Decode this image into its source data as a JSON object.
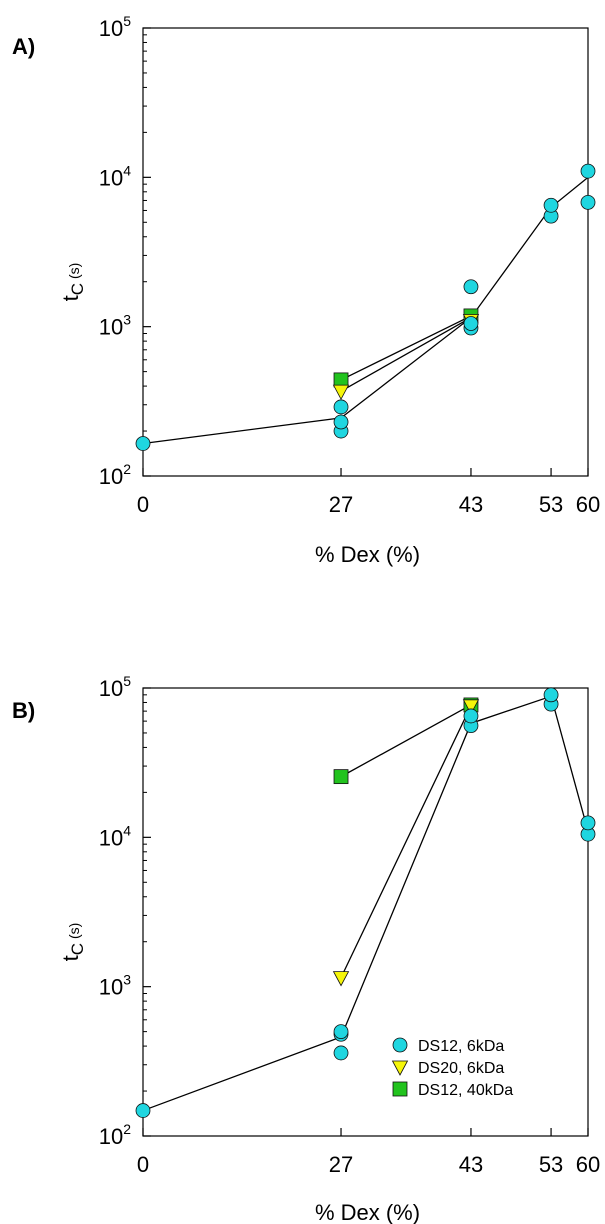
{
  "chart_data": [
    {
      "type": "scatter",
      "panel_label": "A)",
      "xlabel": "% Dex (%)",
      "ylabel": {
        "main": "t",
        "sub": "C",
        "unit": "(s)"
      },
      "x_scale": "categorical-nonuniform",
      "x_ticks": [
        "0",
        "27",
        "43",
        "53",
        "60"
      ],
      "y_scale": "log",
      "ylim": [
        100,
        100000
      ],
      "y_ticks": [
        {
          "base": "10",
          "exp": "2"
        },
        {
          "base": "10",
          "exp": "3"
        },
        {
          "base": "10",
          "exp": "4"
        },
        {
          "base": "10",
          "exp": "5"
        }
      ],
      "grid": false,
      "legend": null,
      "series": [
        {
          "marker": "circle",
          "color": "#1fd6e0",
          "points": [
            [
              0,
              165
            ],
            [
              27,
              200
            ],
            [
              27,
              230
            ],
            [
              27,
              290
            ],
            [
              43,
              980
            ],
            [
              43,
              1050
            ],
            [
              43,
              1850
            ],
            [
              53,
              5500
            ],
            [
              53,
              6500
            ],
            [
              60,
              6800
            ],
            [
              60,
              11000
            ]
          ],
          "line": [
            [
              0,
              165
            ],
            [
              27,
              245
            ],
            [
              43,
              1150
            ],
            [
              53,
              6300
            ],
            [
              60,
              10000
            ]
          ]
        },
        {
          "marker": "triangle-down",
          "color": "#f5f50a",
          "points": [
            [
              27,
              370
            ],
            [
              43,
              1100
            ]
          ],
          "line": [
            [
              27,
              370
            ],
            [
              43,
              1150
            ]
          ]
        },
        {
          "marker": "square",
          "color": "#22c31e",
          "points": [
            [
              27,
              440
            ],
            [
              43,
              1180
            ]
          ],
          "line": [
            [
              27,
              440
            ],
            [
              43,
              1180
            ]
          ]
        }
      ]
    },
    {
      "type": "scatter",
      "panel_label": "B)",
      "xlabel": "% Dex (%)",
      "ylabel": {
        "main": "t",
        "sub": "C",
        "unit": "(s)"
      },
      "x_scale": "categorical-nonuniform",
      "x_ticks": [
        "0",
        "27",
        "43",
        "53",
        "60"
      ],
      "y_scale": "log",
      "ylim": [
        100,
        100000
      ],
      "y_ticks": [
        {
          "base": "10",
          "exp": "2"
        },
        {
          "base": "10",
          "exp": "3"
        },
        {
          "base": "10",
          "exp": "4"
        },
        {
          "base": "10",
          "exp": "5"
        }
      ],
      "grid": false,
      "legend": "lower-right",
      "series": [
        {
          "name": "DS12, 6kDa",
          "marker": "circle",
          "color": "#1fd6e0",
          "points": [
            [
              0,
              148
            ],
            [
              27,
              360
            ],
            [
              27,
              480
            ],
            [
              27,
              500
            ],
            [
              43,
              56000
            ],
            [
              43,
              65000
            ],
            [
              53,
              78000
            ],
            [
              53,
              90000
            ],
            [
              60,
              10500
            ],
            [
              60,
              12500
            ]
          ],
          "line": [
            [
              0,
              148
            ],
            [
              27,
              460
            ],
            [
              43,
              58000
            ],
            [
              53,
              88000
            ],
            [
              60,
              11000
            ]
          ]
        },
        {
          "name": "DS20, 6kDa",
          "marker": "triangle-down",
          "color": "#f5f50a",
          "points": [
            [
              27,
              1150
            ],
            [
              43,
              76000
            ]
          ],
          "line": [
            [
              27,
              1150
            ],
            [
              43,
              76000
            ]
          ]
        },
        {
          "name": "DS12, 40kDa",
          "marker": "square",
          "color": "#22c31e",
          "points": [
            [
              27,
              25500
            ],
            [
              43,
              77000
            ]
          ],
          "line": [
            [
              27,
              25500
            ],
            [
              43,
              77000
            ]
          ]
        }
      ]
    }
  ]
}
